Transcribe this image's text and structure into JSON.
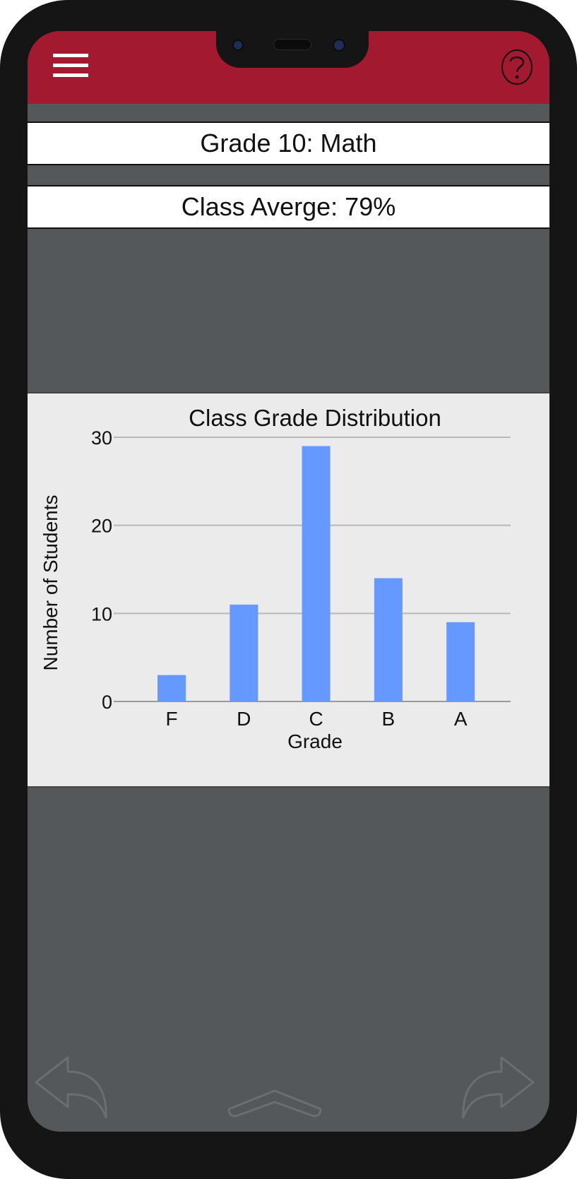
{
  "header": {
    "menu_icon": "hamburger-menu-icon",
    "help_icon": "question-mark-circle-icon",
    "background_color": "#a3192f"
  },
  "title_bar": {
    "text": "Grade 10: Math"
  },
  "average_bar": {
    "text": "Class Averge: 79%"
  },
  "chart_data": {
    "type": "bar",
    "title": "Class Grade Distribution",
    "xlabel": "Grade",
    "ylabel": "Number of Students",
    "categories": [
      "F",
      "D",
      "C",
      "B",
      "A"
    ],
    "values": [
      3,
      11,
      29,
      14,
      9
    ],
    "ylim": [
      0,
      30
    ],
    "yticks": [
      "0",
      "10",
      "20",
      "30"
    ],
    "grid": true,
    "bar_color": "#6699ff",
    "background_color": "#ebebeb"
  },
  "bottom_nav": {
    "back_icon": "back-arrow-icon",
    "home_icon": "chevron-up-icon",
    "forward_icon": "forward-arrow-icon"
  }
}
